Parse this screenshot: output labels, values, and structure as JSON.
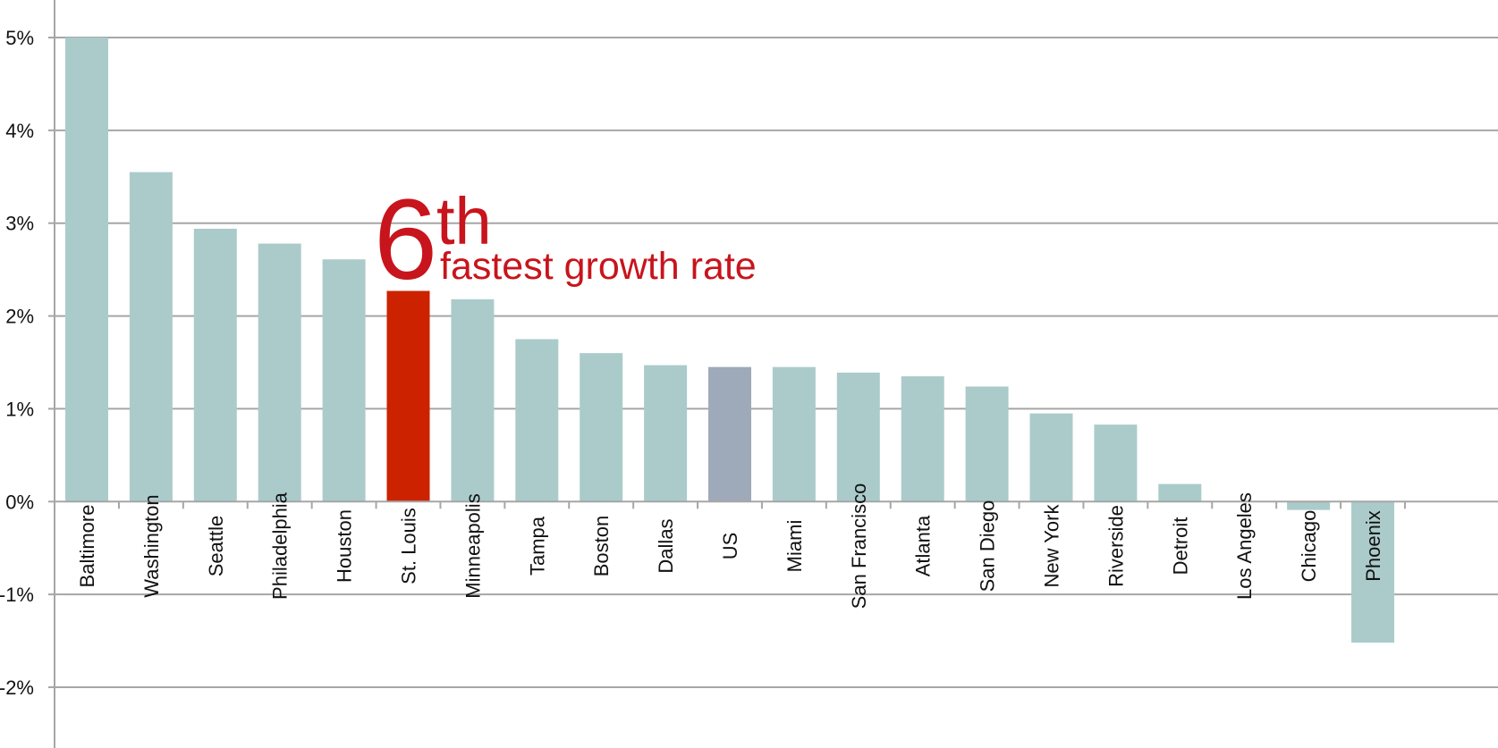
{
  "chart_data": {
    "type": "bar",
    "categories": [
      "Baltimore",
      "Washington",
      "Seattle",
      "Philadelphia",
      "Houston",
      "St. Louis",
      "Minneapolis",
      "Tampa",
      "Boston",
      "Dallas",
      "US",
      "Miami",
      "San Francisco",
      "Atlanta",
      "San Diego",
      "New York",
      "Riverside",
      "Detroit",
      "Los Angeles",
      "Chicago",
      "Phoenix"
    ],
    "values": [
      5.0,
      3.55,
      2.94,
      2.78,
      2.61,
      2.27,
      2.18,
      1.75,
      1.6,
      1.47,
      1.45,
      1.45,
      1.39,
      1.35,
      1.24,
      0.95,
      0.83,
      0.19,
      0.0,
      -0.09,
      -1.52
    ],
    "yticks": [
      "5%",
      "4%",
      "3%",
      "2%",
      "1%",
      "0%",
      "-1%",
      "-2%"
    ],
    "ylim": [
      -2,
      5
    ],
    "grid": true,
    "colors": {
      "default": "#abcbcb",
      "highlight": "#cc2200",
      "benchmark": "#9eaab9",
      "gridline": "#a6a6a6",
      "annotation": "#c8141c"
    },
    "highlight_category": "St. Louis",
    "benchmark_category": "US",
    "annotation": {
      "rank": "6",
      "suffix": "th",
      "text": "fastest growth rate"
    }
  }
}
